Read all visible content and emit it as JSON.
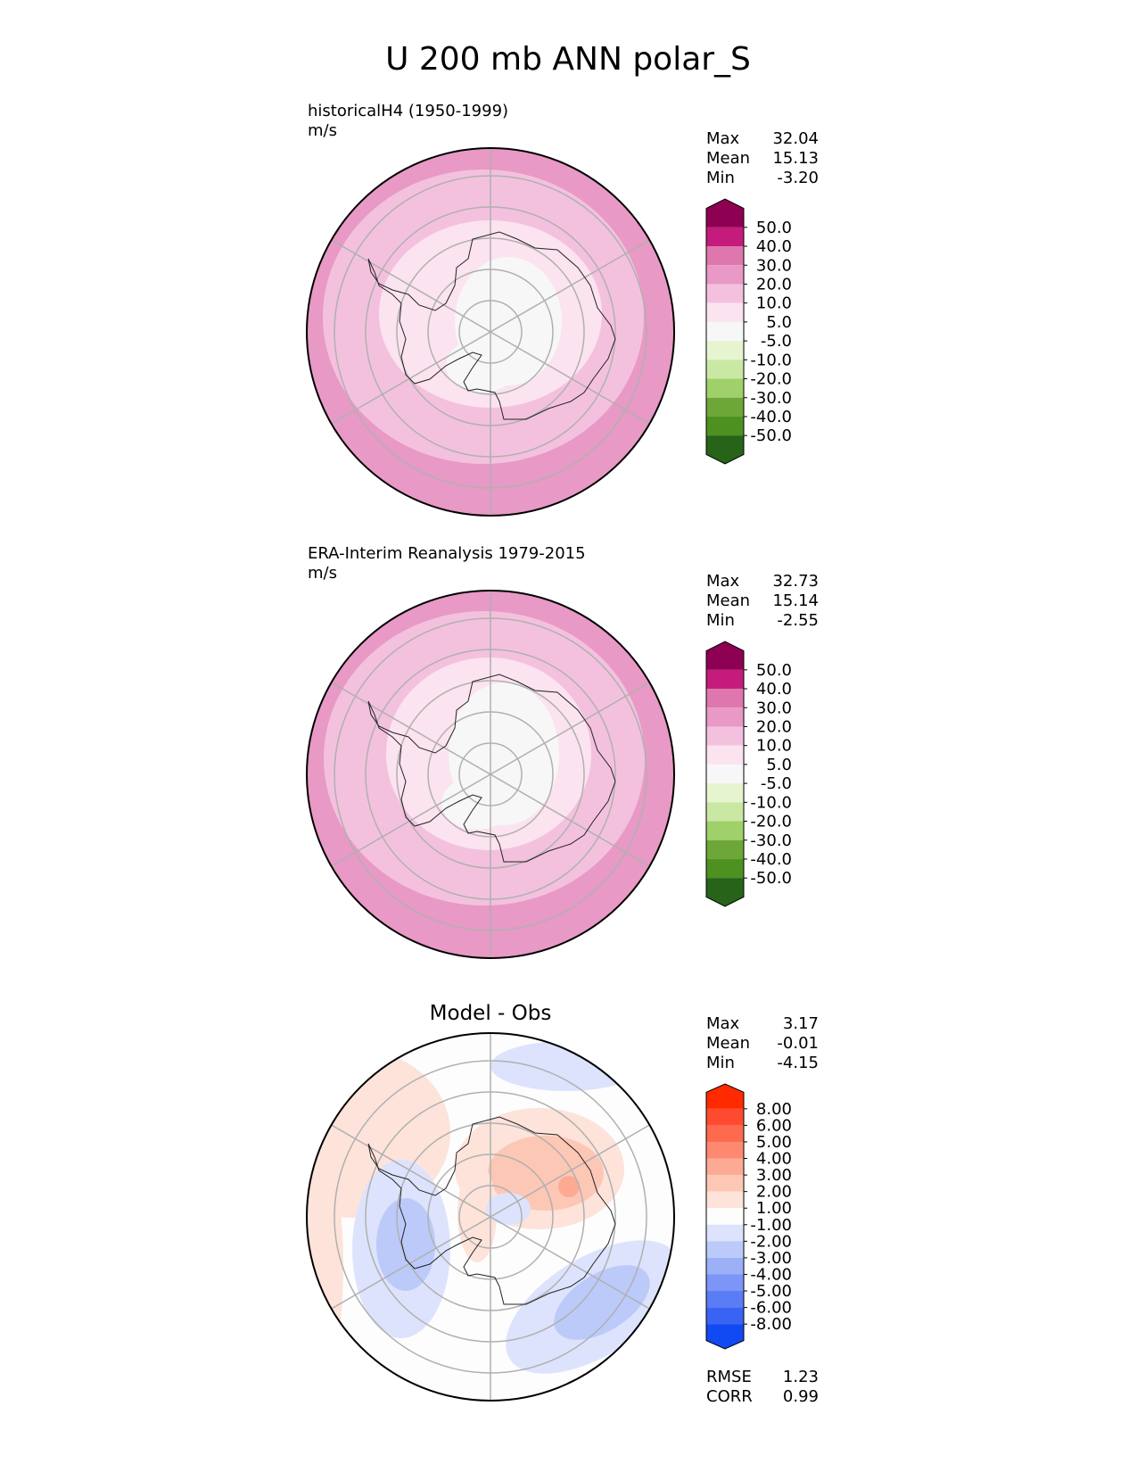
{
  "figure": {
    "title": "U 200 mb ANN polar_S"
  },
  "chart_data": [
    {
      "type": "polar-contour-map",
      "title": "historicalH4 (1950-1999)",
      "units": "m/s",
      "stats": [
        {
          "label": "Max",
          "value": "32.04"
        },
        {
          "label": "Mean",
          "value": "15.13"
        },
        {
          "label": "Min",
          "value": "-3.20"
        }
      ],
      "colorbar": {
        "ticks": [
          "50.0",
          "40.0",
          "30.0",
          "20.0",
          "10.0",
          "5.0",
          "-5.0",
          "-10.0",
          "-20.0",
          "-30.0",
          "-40.0",
          "-50.0"
        ],
        "colors_top_to_bottom": [
          "#8e0152",
          "#c51b7d",
          "#de77ae",
          "#e899c5",
          "#f3c1de",
          "#fbe3ef",
          "#f7f7f7",
          "#e6f5d0",
          "#c9e8a4",
          "#a0d06a",
          "#6da738",
          "#4d9221",
          "#276419"
        ]
      },
      "field": {
        "rings": [
          {
            "min_wind": 20,
            "color": "#e899c5"
          },
          {
            "min_wind": 10,
            "color": "#f3c1de"
          },
          {
            "min_wind": 5,
            "color": "#fbe3ef"
          },
          {
            "min_wind": -5,
            "color": "#f7f7f7"
          }
        ]
      }
    },
    {
      "type": "polar-contour-map",
      "title": "ERA-Interim Reanalysis 1979-2015",
      "units": "m/s",
      "stats": [
        {
          "label": "Max",
          "value": "32.73"
        },
        {
          "label": "Mean",
          "value": "15.14"
        },
        {
          "label": "Min",
          "value": "-2.55"
        }
      ],
      "colorbar": {
        "ticks": [
          "50.0",
          "40.0",
          "30.0",
          "20.0",
          "10.0",
          "5.0",
          "-5.0",
          "-10.0",
          "-20.0",
          "-30.0",
          "-40.0",
          "-50.0"
        ],
        "colors_top_to_bottom": [
          "#8e0152",
          "#c51b7d",
          "#de77ae",
          "#e899c5",
          "#f3c1de",
          "#fbe3ef",
          "#f7f7f7",
          "#e6f5d0",
          "#c9e8a4",
          "#a0d06a",
          "#6da738",
          "#4d9221",
          "#276419"
        ]
      },
      "field": {
        "rings": [
          {
            "min_wind": 20,
            "color": "#e899c5"
          },
          {
            "min_wind": 10,
            "color": "#f3c1de"
          },
          {
            "min_wind": 5,
            "color": "#fbe3ef"
          },
          {
            "min_wind": -5,
            "color": "#f7f7f7"
          }
        ]
      }
    },
    {
      "type": "polar-contour-map",
      "title": "Model - Obs",
      "units": "",
      "stats": [
        {
          "label": "Max",
          "value": "3.17"
        },
        {
          "label": "Mean",
          "value": "-0.01"
        },
        {
          "label": "Min",
          "value": "-4.15"
        }
      ],
      "colorbar": {
        "ticks": [
          "8.00",
          "6.00",
          "5.00",
          "4.00",
          "3.00",
          "2.00",
          "1.00",
          "-1.00",
          "-2.00",
          "-3.00",
          "-4.00",
          "-5.00",
          "-6.00",
          "-8.00"
        ],
        "colors_top_to_bottom": [
          "#ff2a00",
          "#fe4b30",
          "#fd6a4e",
          "#fd8a70",
          "#fdaa94",
          "#fdc7b5",
          "#fde3da",
          "#fdfdfd",
          "#dde3fc",
          "#bccaf9",
          "#9cb0f8",
          "#7b96f7",
          "#5a7cf5",
          "#3a63f3",
          "#1149f2"
        ]
      },
      "footer_stats": [
        {
          "label": "RMSE",
          "value": "1.23"
        },
        {
          "label": "CORR",
          "value": "0.99"
        }
      ]
    }
  ]
}
